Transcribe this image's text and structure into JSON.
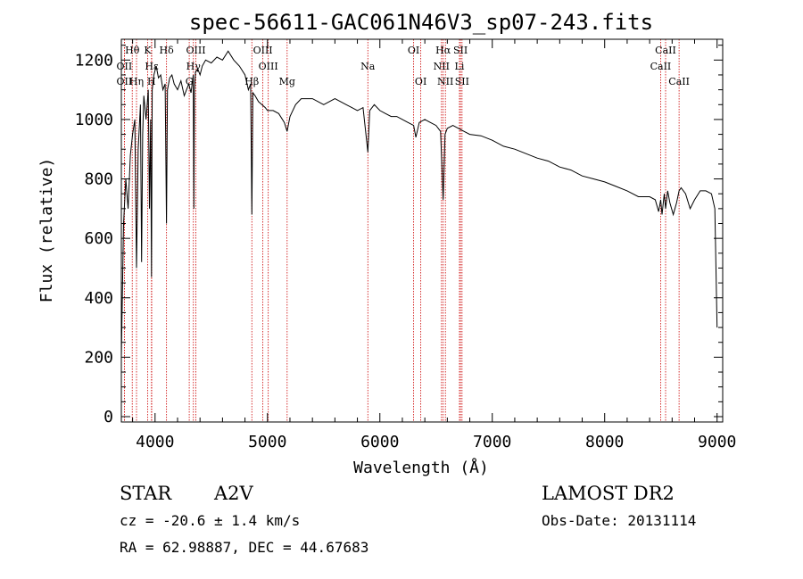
{
  "chart_data": {
    "type": "line",
    "title": "spec-56611-GAC061N46V3_sp07-243.fits",
    "xlabel": "Wavelength (Å)",
    "ylabel": "Flux (relative)",
    "xlim": [
      3700,
      9050
    ],
    "ylim": [
      0,
      1270
    ],
    "xticks": [
      "4000",
      "5000",
      "6000",
      "7000",
      "8000",
      "9000"
    ],
    "yticks": [
      "0",
      "200",
      "400",
      "600",
      "800",
      "1000",
      "1200"
    ],
    "series": [
      {
        "x": [
          3700,
          3720,
          3740,
          3760,
          3780,
          3800,
          3820,
          3835,
          3850,
          3870,
          3880,
          3890,
          3900,
          3920,
          3940,
          3950,
          3960,
          3968,
          3975,
          3990,
          4010,
          4030,
          4050,
          4070,
          4090,
          4102,
          4110,
          4130,
          4150,
          4170,
          4200,
          4230,
          4260,
          4280,
          4300,
          4320,
          4340,
          4345,
          4350,
          4360,
          4380,
          4400,
          4420,
          4450,
          4500,
          4550,
          4600,
          4650,
          4700,
          4750,
          4800,
          4830,
          4850,
          4861,
          4870,
          4890,
          4920,
          4950,
          4980,
          5000,
          5050,
          5100,
          5150,
          5175,
          5200,
          5250,
          5300,
          5350,
          5400,
          5450,
          5500,
          5550,
          5600,
          5650,
          5700,
          5750,
          5800,
          5850,
          5893,
          5910,
          5950,
          6000,
          6050,
          6100,
          6150,
          6200,
          6250,
          6300,
          6320,
          6350,
          6400,
          6450,
          6500,
          6540,
          6563,
          6580,
          6600,
          6650,
          6700,
          6750,
          6800,
          6900,
          7000,
          7100,
          7200,
          7300,
          7400,
          7500,
          7600,
          7700,
          7800,
          7900,
          8000,
          8100,
          8200,
          8300,
          8400,
          8450,
          8480,
          8498,
          8510,
          8530,
          8542,
          8560,
          8580,
          8610,
          8640,
          8662,
          8680,
          8720,
          8760,
          8800,
          8850,
          8900,
          8950,
          8980,
          9000
        ],
        "y": [
          200,
          650,
          800,
          700,
          880,
          950,
          1000,
          500,
          900,
          1050,
          520,
          950,
          1080,
          1000,
          1100,
          700,
          1000,
          470,
          1100,
          1150,
          1180,
          1140,
          1150,
          1100,
          1120,
          650,
          1100,
          1140,
          1150,
          1120,
          1100,
          1130,
          1080,
          1100,
          1120,
          1090,
          1150,
          700,
          1100,
          1160,
          1170,
          1150,
          1180,
          1200,
          1190,
          1210,
          1200,
          1230,
          1200,
          1180,
          1150,
          1100,
          1120,
          680,
          1090,
          1080,
          1060,
          1050,
          1040,
          1030,
          1030,
          1020,
          990,
          960,
          1010,
          1050,
          1070,
          1070,
          1070,
          1060,
          1050,
          1060,
          1070,
          1060,
          1050,
          1040,
          1030,
          1040,
          890,
          1030,
          1050,
          1030,
          1020,
          1010,
          1010,
          1000,
          990,
          980,
          940,
          990,
          1000,
          990,
          980,
          960,
          730,
          950,
          970,
          980,
          970,
          960,
          950,
          945,
          930,
          910,
          900,
          885,
          870,
          860,
          840,
          830,
          810,
          800,
          790,
          775,
          760,
          740,
          740,
          730,
          690,
          730,
          680,
          750,
          700,
          760,
          720,
          680,
          720,
          760,
          770,
          750,
          700,
          730,
          760,
          760,
          750,
          700,
          300
        ]
      }
    ],
    "line_markers": [
      {
        "name": "Hθ",
        "x": 3797,
        "row": 1
      },
      {
        "name": "OII",
        "x": 3727,
        "row": 2
      },
      {
        "name": "OII",
        "x": 3727,
        "row": 3
      },
      {
        "name": "Hη",
        "x": 3835,
        "row": 3
      },
      {
        "name": "K",
        "x": 3934,
        "row": 1
      },
      {
        "name": "H",
        "x": 3968,
        "row": 3
      },
      {
        "name": "Hε",
        "x": 3970,
        "row": 2
      },
      {
        "name": "Hδ",
        "x": 4102,
        "row": 1
      },
      {
        "name": "G",
        "x": 4304,
        "row": 3
      },
      {
        "name": "OIII",
        "x": 4363,
        "row": 1
      },
      {
        "name": "Hγ",
        "x": 4341,
        "row": 2
      },
      {
        "name": "OIII",
        "x": 4959,
        "row": 1
      },
      {
        "name": "OIII",
        "x": 5007,
        "row": 2
      },
      {
        "name": "Hβ",
        "x": 4861,
        "row": 3
      },
      {
        "name": "Mg",
        "x": 5175,
        "row": 3
      },
      {
        "name": "Na",
        "x": 5893,
        "row": 2
      },
      {
        "name": "OI",
        "x": 6300,
        "row": 1
      },
      {
        "name": "OI",
        "x": 6364,
        "row": 3
      },
      {
        "name": "Hα",
        "x": 6563,
        "row": 1
      },
      {
        "name": "NII",
        "x": 6548,
        "row": 2
      },
      {
        "name": "NII",
        "x": 6583,
        "row": 3
      },
      {
        "name": "SII",
        "x": 6717,
        "row": 1
      },
      {
        "name": "Li",
        "x": 6708,
        "row": 2
      },
      {
        "name": "SII",
        "x": 6731,
        "row": 3
      },
      {
        "name": "CaII",
        "x": 8542,
        "row": 1
      },
      {
        "name": "CaII",
        "x": 8498,
        "row": 2
      },
      {
        "name": "CaII",
        "x": 8662,
        "row": 3
      }
    ],
    "marker_color": "#cc0000",
    "grid": false
  },
  "info": {
    "object_class": "STAR",
    "subclass": "A2V",
    "survey": "LAMOST DR2",
    "cz": "cz = -20.6 ± 1.4 km/s",
    "obs_date": "Obs-Date: 20131114",
    "coords": "RA =  62.98887, DEC =  44.67683"
  }
}
